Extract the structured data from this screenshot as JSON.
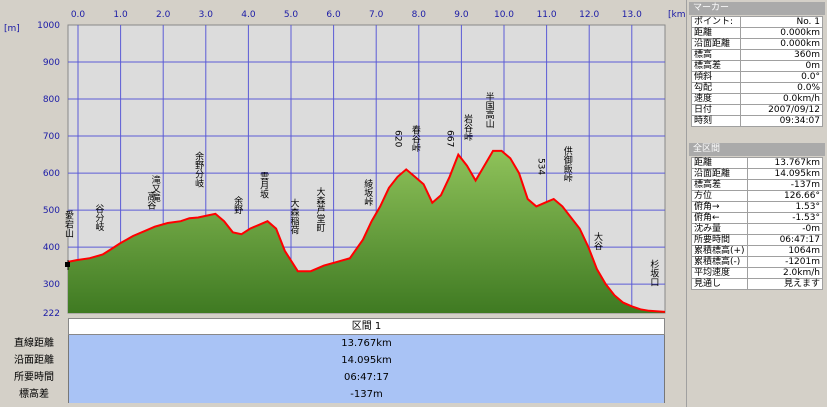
{
  "chart_data": {
    "type": "area",
    "x_unit_label": "[km]",
    "y_unit_label": "[m]",
    "xlim": [
      0,
      13.767
    ],
    "ylim": [
      222,
      1000
    ],
    "x_ticks": [
      "0.0",
      "1.0",
      "2.0",
      "3.0",
      "4.0",
      "5.0",
      "6.0",
      "7.0",
      "8.0",
      "9.0",
      "10.0",
      "11.0",
      "12.0",
      "13.0"
    ],
    "y_ticks": [
      "1000",
      "900",
      "800",
      "700",
      "600",
      "500",
      "400",
      "300",
      "222"
    ],
    "series": [
      {
        "x": [
          0,
          0.2,
          0.5,
          0.8,
          1.0,
          1.2,
          1.5,
          1.8,
          2.0,
          2.3,
          2.6,
          2.8,
          3.0,
          3.2,
          3.4,
          3.6,
          3.8,
          4.0,
          4.2,
          4.4,
          4.6,
          4.8,
          5.0,
          5.3,
          5.6,
          5.9,
          6.2,
          6.5,
          6.8,
          7.0,
          7.2,
          7.4,
          7.6,
          7.8,
          8.0,
          8.2,
          8.4,
          8.6,
          8.8,
          9.0,
          9.2,
          9.4,
          9.6,
          9.8,
          10.0,
          10.2,
          10.4,
          10.6,
          10.8,
          11.0,
          11.2,
          11.4,
          11.6,
          11.8,
          12.0,
          12.2,
          12.4,
          12.6,
          12.8,
          13.0,
          13.2,
          13.4,
          13.767
        ],
        "y": [
          360,
          365,
          370,
          380,
          395,
          410,
          430,
          445,
          455,
          465,
          470,
          478,
          480,
          485,
          490,
          470,
          440,
          435,
          450,
          460,
          470,
          450,
          390,
          335,
          335,
          350,
          360,
          370,
          420,
          470,
          510,
          560,
          590,
          610,
          590,
          570,
          520,
          540,
          590,
          650,
          620,
          580,
          620,
          660,
          660,
          640,
          600,
          530,
          510,
          520,
          530,
          510,
          480,
          450,
          400,
          340,
          300,
          270,
          250,
          240,
          232,
          228,
          225
        ]
      }
    ],
    "annotations": [
      {
        "label": "愛宕山",
        "x": 0.0
      },
      {
        "label": "谷分岐",
        "x": 0.7
      },
      {
        "label": "滝又滝",
        "x": 2.0
      },
      {
        "label": "高谷",
        "x": 1.9
      },
      {
        "label": "余野分岐",
        "x": 3.0
      },
      {
        "label": "余野",
        "x": 3.9
      },
      {
        "label": "雲月坂",
        "x": 4.5
      },
      {
        "label": "大森稲荷",
        "x": 5.2
      },
      {
        "label": "大森芦堂町",
        "x": 5.8
      },
      {
        "label": "綾坂峠",
        "x": 6.9
      },
      {
        "label": "620",
        "x": 7.6
      },
      {
        "label": "春谷峠",
        "x": 8.0
      },
      {
        "label": "667",
        "x": 8.8
      },
      {
        "label": "岩谷峠",
        "x": 9.2
      },
      {
        "label": "半国高山",
        "x": 9.7
      },
      {
        "label": "534",
        "x": 10.9
      },
      {
        "label": "供御飯峠",
        "x": 11.5
      },
      {
        "label": "大谷",
        "x": 12.2
      },
      {
        "label": "杉坂口",
        "x": 13.5
      }
    ]
  },
  "section": {
    "title": "区間 1",
    "rows": [
      {
        "label": "直線距離",
        "value": "13.767km"
      },
      {
        "label": "沿面距離",
        "value": "14.095km"
      },
      {
        "label": "所要時間",
        "value": "06:47:17"
      },
      {
        "label": "標高差",
        "value": "-137m"
      }
    ]
  },
  "marker": {
    "title": "マーカー",
    "rows": [
      {
        "k": "ポイント:",
        "v": "No. 1"
      },
      {
        "k": "距離",
        "v": "0.000km"
      },
      {
        "k": "沿面距離",
        "v": "0.000km"
      },
      {
        "k": "標高",
        "v": "360m"
      },
      {
        "k": "標高差",
        "v": "0m"
      },
      {
        "k": "傾斜",
        "v": "0.0°"
      },
      {
        "k": "勾配",
        "v": "0.0%"
      },
      {
        "k": "速度",
        "v": "0.0km/h"
      },
      {
        "k": "日付",
        "v": "2007/09/12"
      },
      {
        "k": "時刻",
        "v": "09:34:07"
      }
    ]
  },
  "total": {
    "title": "全区間",
    "rows": [
      {
        "k": "距離",
        "v": "13.767km"
      },
      {
        "k": "沿面距離",
        "v": "14.095km"
      },
      {
        "k": "標高差",
        "v": "-137m"
      },
      {
        "k": "方位",
        "v": "126.66°"
      },
      {
        "k": "俯角→",
        "v": "1.53°"
      },
      {
        "k": "俯角←",
        "v": "-1.53°"
      },
      {
        "k": "沈み量",
        "v": "-0m"
      },
      {
        "k": "所要時間",
        "v": "06:47:17"
      },
      {
        "k": "累積標高(+)",
        "v": "1064m"
      },
      {
        "k": "累積標高(-)",
        "v": "-1201m"
      },
      {
        "k": "平均速度",
        "v": "2.0km/h"
      },
      {
        "k": "見通し",
        "v": "見えます"
      }
    ]
  }
}
